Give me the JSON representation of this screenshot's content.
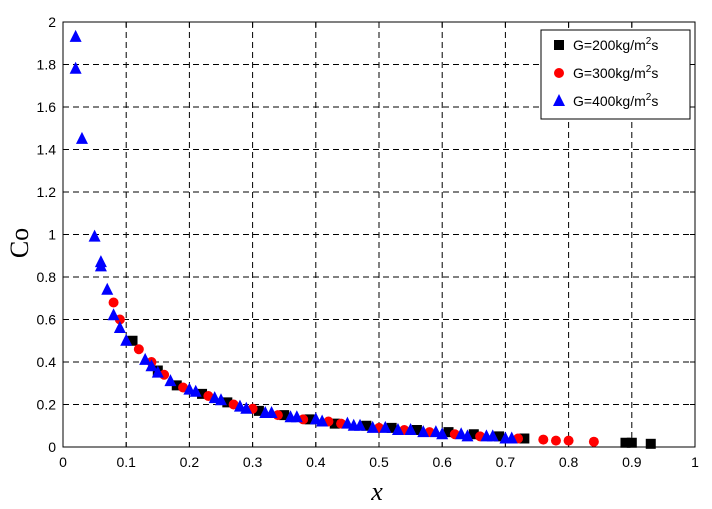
{
  "chart_data": {
    "type": "scatter",
    "title": "",
    "xlabel": "x",
    "ylabel": "Co",
    "xlim": [
      0,
      1
    ],
    "ylim": [
      0,
      2
    ],
    "x_ticks": [
      "0",
      "0.1",
      "0.2",
      "0.3",
      "0.4",
      "0.5",
      "0.6",
      "0.7",
      "0.8",
      "0.9",
      "1"
    ],
    "y_ticks": [
      "0",
      "0.2",
      "0.4",
      "0.6",
      "0.8",
      "1",
      "1.2",
      "1.4",
      "1.6",
      "1.8",
      "2"
    ],
    "grid": true,
    "legend_position": "top-right",
    "series": [
      {
        "name": "G=200kg/m2s",
        "legend_main": "G=200kg/m",
        "legend_sup": "2",
        "legend_tail": "s",
        "marker": "square",
        "color": "#000000",
        "points": [
          [
            0.11,
            0.5
          ],
          [
            0.15,
            0.36
          ],
          [
            0.18,
            0.29
          ],
          [
            0.22,
            0.25
          ],
          [
            0.26,
            0.21
          ],
          [
            0.31,
            0.17
          ],
          [
            0.35,
            0.15
          ],
          [
            0.39,
            0.13
          ],
          [
            0.43,
            0.11
          ],
          [
            0.48,
            0.1
          ],
          [
            0.52,
            0.09
          ],
          [
            0.56,
            0.08
          ],
          [
            0.61,
            0.07
          ],
          [
            0.65,
            0.06
          ],
          [
            0.69,
            0.05
          ],
          [
            0.73,
            0.04
          ],
          [
            0.89,
            0.02
          ],
          [
            0.9,
            0.02
          ],
          [
            0.93,
            0.015
          ]
        ]
      },
      {
        "name": "G=300kg/m2s",
        "legend_main": "G=300kg/m",
        "legend_sup": "2",
        "legend_tail": "s",
        "marker": "circle",
        "color": "#ff0000",
        "points": [
          [
            0.08,
            0.68
          ],
          [
            0.09,
            0.6
          ],
          [
            0.12,
            0.46
          ],
          [
            0.14,
            0.4
          ],
          [
            0.16,
            0.34
          ],
          [
            0.19,
            0.28
          ],
          [
            0.23,
            0.24
          ],
          [
            0.27,
            0.2
          ],
          [
            0.3,
            0.18
          ],
          [
            0.34,
            0.15
          ],
          [
            0.38,
            0.13
          ],
          [
            0.42,
            0.12
          ],
          [
            0.44,
            0.11
          ],
          [
            0.5,
            0.09
          ],
          [
            0.54,
            0.08
          ],
          [
            0.58,
            0.07
          ],
          [
            0.62,
            0.06
          ],
          [
            0.66,
            0.05
          ],
          [
            0.72,
            0.04
          ],
          [
            0.76,
            0.035
          ],
          [
            0.78,
            0.03
          ],
          [
            0.8,
            0.03
          ],
          [
            0.84,
            0.025
          ]
        ]
      },
      {
        "name": "G=400kg/m2s",
        "legend_main": "G=400kg/m",
        "legend_sup": "2",
        "legend_tail": "s",
        "marker": "triangle",
        "color": "#0000ff",
        "points": [
          [
            0.02,
            1.93
          ],
          [
            0.02,
            1.78
          ],
          [
            0.03,
            1.45
          ],
          [
            0.05,
            0.99
          ],
          [
            0.06,
            0.87
          ],
          [
            0.06,
            0.85
          ],
          [
            0.07,
            0.74
          ],
          [
            0.08,
            0.62
          ],
          [
            0.09,
            0.56
          ],
          [
            0.1,
            0.5
          ],
          [
            0.13,
            0.41
          ],
          [
            0.14,
            0.38
          ],
          [
            0.15,
            0.35
          ],
          [
            0.17,
            0.31
          ],
          [
            0.2,
            0.27
          ],
          [
            0.21,
            0.26
          ],
          [
            0.24,
            0.23
          ],
          [
            0.25,
            0.22
          ],
          [
            0.28,
            0.19
          ],
          [
            0.29,
            0.18
          ],
          [
            0.32,
            0.16
          ],
          [
            0.33,
            0.16
          ],
          [
            0.36,
            0.14
          ],
          [
            0.37,
            0.14
          ],
          [
            0.4,
            0.13
          ],
          [
            0.41,
            0.12
          ],
          [
            0.45,
            0.11
          ],
          [
            0.46,
            0.1
          ],
          [
            0.47,
            0.1
          ],
          [
            0.49,
            0.09
          ],
          [
            0.51,
            0.09
          ],
          [
            0.53,
            0.08
          ],
          [
            0.55,
            0.08
          ],
          [
            0.57,
            0.07
          ],
          [
            0.59,
            0.07
          ],
          [
            0.6,
            0.06
          ],
          [
            0.63,
            0.06
          ],
          [
            0.64,
            0.05
          ],
          [
            0.67,
            0.05
          ],
          [
            0.68,
            0.05
          ],
          [
            0.7,
            0.04
          ],
          [
            0.71,
            0.04
          ]
        ]
      }
    ]
  }
}
